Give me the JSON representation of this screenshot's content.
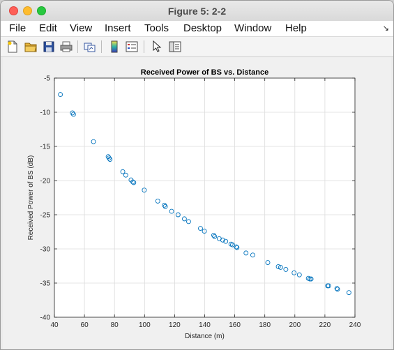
{
  "window": {
    "title": "Figure 5: 2-2"
  },
  "menu": {
    "items": [
      "File",
      "Edit",
      "View",
      "Insert",
      "Tools",
      "Desktop",
      "Window",
      "Help"
    ]
  },
  "toolbar": {
    "icons": [
      "new-file-icon",
      "open-folder-icon",
      "save-icon",
      "print-icon",
      "link-plot-icon",
      "colorbar-icon",
      "legend-icon",
      "pointer-icon",
      "property-editor-icon"
    ]
  },
  "colors": {
    "marker": "#0072bd",
    "grid": "#dcdcdc"
  },
  "chart_data": {
    "type": "scatter",
    "title": "Received Power of BS vs. Distance",
    "xlabel": "Distance (m)",
    "ylabel": "Received Power of BS (dB)",
    "xlim": [
      40,
      240
    ],
    "ylim": [
      -40,
      -5
    ],
    "xticks": [
      40,
      60,
      80,
      100,
      120,
      140,
      160,
      180,
      200,
      220,
      240
    ],
    "yticks": [
      -40,
      -35,
      -30,
      -25,
      -20,
      -15,
      -10,
      -5
    ],
    "grid": true,
    "marker": "circle",
    "points": [
      [
        44,
        -7.4
      ],
      [
        52,
        -10.1
      ],
      [
        52.7,
        -10.3
      ],
      [
        66,
        -14.3
      ],
      [
        75.8,
        -16.5
      ],
      [
        76.4,
        -16.7
      ],
      [
        77,
        -16.9
      ],
      [
        85.5,
        -18.7
      ],
      [
        87.5,
        -19.2
      ],
      [
        91,
        -19.9
      ],
      [
        92.2,
        -20.2
      ],
      [
        92.8,
        -20.3
      ],
      [
        99.8,
        -21.4
      ],
      [
        108.8,
        -23
      ],
      [
        113.2,
        -23.6
      ],
      [
        113.8,
        -23.8
      ],
      [
        118,
        -24.5
      ],
      [
        122.3,
        -25
      ],
      [
        126.5,
        -25.6
      ],
      [
        129.3,
        -26
      ],
      [
        137.2,
        -27
      ],
      [
        139.8,
        -27.4
      ],
      [
        146,
        -28
      ],
      [
        146.6,
        -28.2
      ],
      [
        149.7,
        -28.5
      ],
      [
        152,
        -28.7
      ],
      [
        154,
        -28.9
      ],
      [
        157.5,
        -29.3
      ],
      [
        158.5,
        -29.4
      ],
      [
        161,
        -29.7
      ],
      [
        161.5,
        -29.8
      ],
      [
        167.5,
        -30.6
      ],
      [
        172,
        -30.9
      ],
      [
        182,
        -32
      ],
      [
        189,
        -32.6
      ],
      [
        190.5,
        -32.7
      ],
      [
        194,
        -33
      ],
      [
        199.5,
        -33.5
      ],
      [
        203,
        -33.8
      ],
      [
        209,
        -34.3
      ],
      [
        210,
        -34.4
      ],
      [
        210.8,
        -34.4
      ],
      [
        221.8,
        -35.4
      ],
      [
        222.5,
        -35.4
      ],
      [
        228,
        -35.8
      ],
      [
        228.4,
        -35.9
      ],
      [
        236,
        -36.4
      ]
    ]
  }
}
